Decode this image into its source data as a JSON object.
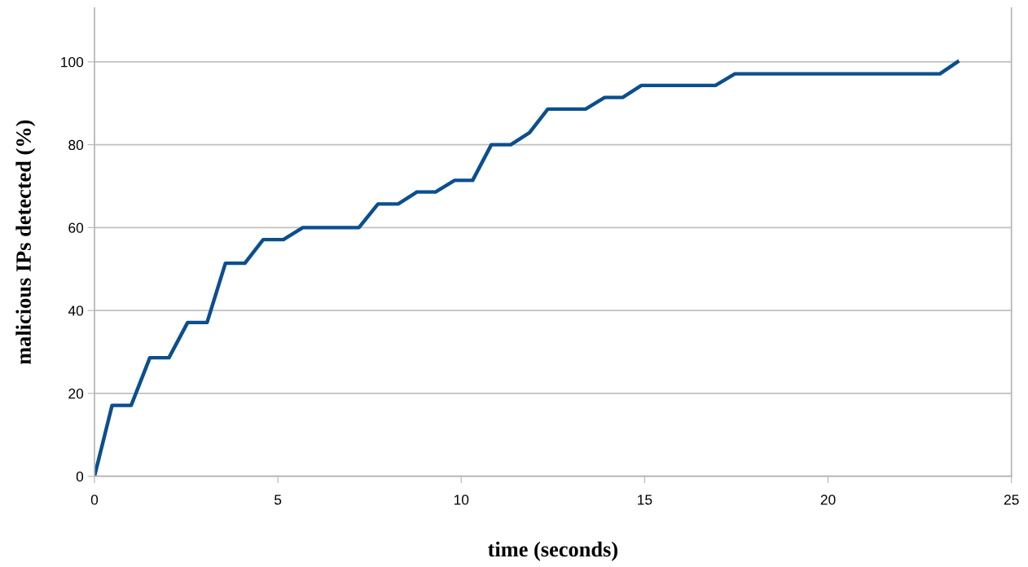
{
  "chart_data": {
    "type": "line",
    "xlabel": "time (seconds)",
    "ylabel": "malicious IPs detected (%)",
    "x": [
      0,
      0.48,
      1.0,
      1.51,
      2.03,
      2.54,
      3.07,
      3.57,
      4.1,
      4.6,
      5.15,
      5.68,
      7.21,
      7.73,
      8.28,
      8.79,
      9.3,
      9.82,
      10.31,
      10.82,
      11.35,
      11.86,
      12.36,
      13.39,
      13.91,
      14.4,
      14.91,
      16.93,
      17.46,
      23.05,
      23.53
    ],
    "series": [
      {
        "color": "#0b4f8e",
        "values": [
          0,
          17.1,
          17.1,
          28.6,
          28.6,
          37.1,
          37.1,
          51.4,
          51.4,
          57.1,
          57.1,
          60,
          60,
          65.7,
          65.7,
          68.6,
          68.6,
          71.4,
          71.4,
          80,
          80,
          82.9,
          88.6,
          88.6,
          91.4,
          91.4,
          94.3,
          94.3,
          97.1,
          97.1,
          100
        ]
      }
    ],
    "xlim": [
      0,
      25
    ],
    "ylim": [
      0,
      113
    ],
    "xticks": [
      0,
      5,
      10,
      15,
      20,
      25
    ],
    "yticks": [
      0,
      20,
      40,
      60,
      80,
      100
    ],
    "grid": "y",
    "legend": false,
    "marker": "none",
    "line_style": "solid"
  }
}
